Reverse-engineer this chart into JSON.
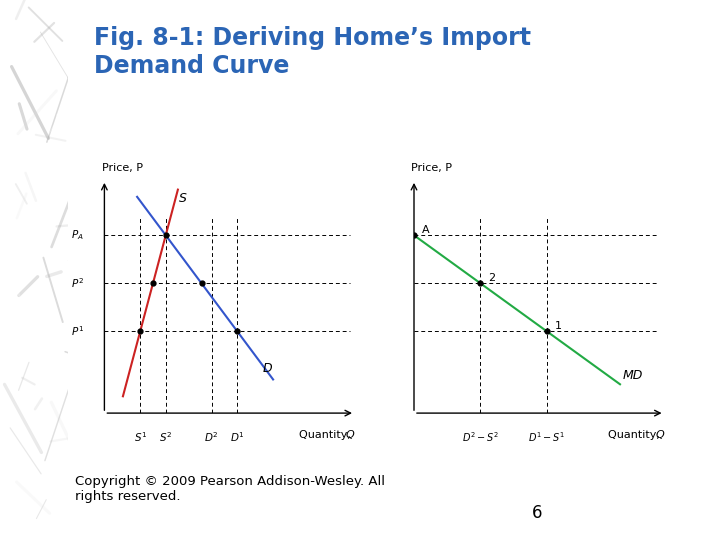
{
  "title": "Fig. 8-1: Deriving Home’s Import\nDemand Curve",
  "title_color": "#2B65B5",
  "title_fontsize": 17,
  "bg_color": "#FFFFFF",
  "copyright": "Copyright © 2009 Pearson Addison-Wesley. All\nrights reserved.",
  "page_num": "6",
  "left_ylabel": "Price, P",
  "left_xlabel": "Quantity, Q",
  "right_ylabel": "Price, P",
  "right_xlabel": "Quantity, Q",
  "price_PA": 0.74,
  "price_P2": 0.54,
  "price_P1": 0.34,
  "S1": 0.14,
  "S2": 0.24,
  "D2": 0.42,
  "D1": 0.52,
  "supply_color": "#CC2222",
  "demand_color": "#3355CC",
  "md_color": "#22AA44",
  "label_fontsize": 8,
  "tick_fontsize": 7.5,
  "annotation_fontsize": 8
}
